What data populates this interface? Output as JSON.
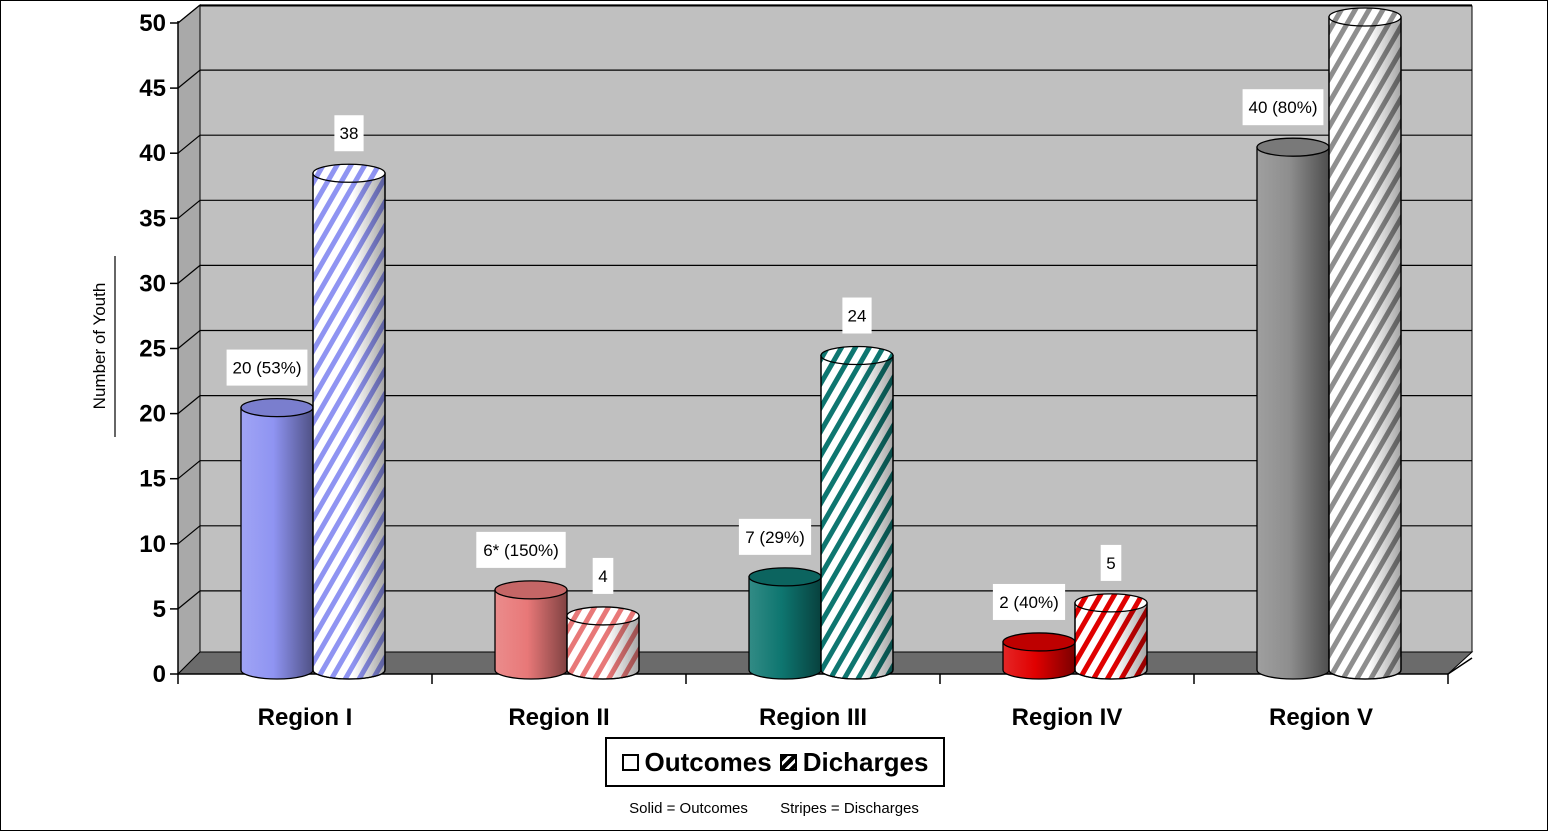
{
  "chart_data": {
    "type": "bar",
    "style": "3d-cylinder",
    "ylabel": "Number of Youth",
    "xlabel": "",
    "title": "",
    "ylim": [
      0,
      50
    ],
    "yticks": [
      0,
      5,
      10,
      15,
      20,
      25,
      30,
      35,
      40,
      45,
      50
    ],
    "grid": true,
    "categories": [
      "Region I",
      "Region II",
      "Region III",
      "Region IV",
      "Region V"
    ],
    "series": [
      {
        "name": "Outcomes",
        "pattern": "solid",
        "values": [
          20,
          6,
          7,
          2,
          40
        ],
        "labels": [
          "20 (53%)",
          "6* (150%)",
          "7 (29%)",
          "2 (40%)",
          "40 (80%)"
        ]
      },
      {
        "name": "Dicharges",
        "pattern": "stripes",
        "values": [
          38,
          4,
          24,
          5,
          50
        ],
        "labels": [
          "38",
          "4",
          "24",
          "5",
          "50"
        ]
      }
    ],
    "colors": [
      "#8f94f2",
      "#e87878",
      "#0e7670",
      "#e00000",
      "#8e8e8e"
    ],
    "plot_background": "#c0c0c0",
    "legend_position": "bottom"
  },
  "legend": {
    "items": [
      {
        "label": "Outcomes"
      },
      {
        "label": "Dicharges"
      }
    ]
  },
  "footnote": {
    "solid": "Solid = Outcomes",
    "stripes": "Stripes = Discharges"
  }
}
